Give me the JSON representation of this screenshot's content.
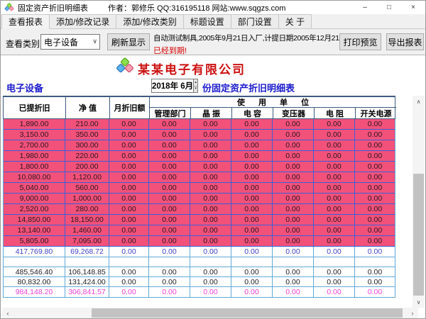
{
  "window": {
    "title": "固定资产折旧明细表",
    "author_info": "作者：郭修乐   QQ:316195118   网站:www.sqgzs.com"
  },
  "icons": {
    "minimize": "–",
    "maximize": "□",
    "close": "×",
    "dropdown_arrow": "∨",
    "spin_up": "▴",
    "spin_down": "▾",
    "scroll_up": "∧",
    "scroll_down": "∨",
    "scroll_left": "‹",
    "scroll_right": "›"
  },
  "menu_tabs": [
    {
      "label": "查看报表",
      "active": true
    },
    {
      "label": "添加/修改记录",
      "active": false
    },
    {
      "label": "添加/修改类别",
      "active": false
    },
    {
      "label": "标题设置",
      "active": false
    },
    {
      "label": "部门设置",
      "active": false
    },
    {
      "label": "关 于",
      "active": false
    }
  ],
  "toolbar": {
    "category_label": "查看类别",
    "category_value": "电子设备",
    "refresh_button": "刷新显示",
    "asset_info": "自动测试制具,2005年9月21日入厂,计提日期2005年12月21日",
    "expired_notice": "已经到期!",
    "print_preview_button": "打印预览",
    "export_button": "导出报表"
  },
  "report": {
    "company_name": "某某电子有限公司",
    "category_title": "电子设备",
    "period_value": "2018年  6月",
    "subtitle": "份固定资产折旧明细表"
  },
  "table": {
    "row_headers": [
      "已提折旧",
      "净 值",
      "月折旧额"
    ],
    "group_header": "使 用 单 位",
    "unit_headers": [
      "管理部门",
      "晶 振",
      "电 容",
      "变压器",
      "电 阻",
      "开关电源"
    ],
    "rows": [
      {
        "style": "pink",
        "values": [
          "1,890.00",
          "210.00",
          "0.00",
          "0.00",
          "0.00",
          "0.00",
          "0.00",
          "0.00",
          "0.00"
        ]
      },
      {
        "style": "pink",
        "values": [
          "3,150.00",
          "350.00",
          "0.00",
          "0.00",
          "0.00",
          "0.00",
          "0.00",
          "0.00",
          "0.00"
        ]
      },
      {
        "style": "pink",
        "values": [
          "2,700.00",
          "300.00",
          "0.00",
          "0.00",
          "0.00",
          "0.00",
          "0.00",
          "0.00",
          "0.00"
        ]
      },
      {
        "style": "pink",
        "values": [
          "1,980.00",
          "220.00",
          "0.00",
          "0.00",
          "0.00",
          "0.00",
          "0.00",
          "0.00",
          "0.00"
        ]
      },
      {
        "style": "pink",
        "values": [
          "1,800.00",
          "200.00",
          "0.00",
          "0.00",
          "0.00",
          "0.00",
          "0.00",
          "0.00",
          "0.00"
        ]
      },
      {
        "style": "pink",
        "values": [
          "10,080.00",
          "1,120.00",
          "0.00",
          "0.00",
          "0.00",
          "0.00",
          "0.00",
          "0.00",
          "0.00"
        ]
      },
      {
        "style": "pink",
        "values": [
          "5,040.00",
          "560.00",
          "0.00",
          "0.00",
          "0.00",
          "0.00",
          "0.00",
          "0.00",
          "0.00"
        ]
      },
      {
        "style": "pink",
        "values": [
          "9,000.00",
          "1,000.00",
          "0.00",
          "0.00",
          "0.00",
          "0.00",
          "0.00",
          "0.00",
          "0.00"
        ]
      },
      {
        "style": "pink",
        "values": [
          "2,520.00",
          "280.00",
          "0.00",
          "0.00",
          "0.00",
          "0.00",
          "0.00",
          "0.00",
          "0.00"
        ]
      },
      {
        "style": "pink",
        "values": [
          "14,850.00",
          "18,150.00",
          "0.00",
          "0.00",
          "0.00",
          "0.00",
          "0.00",
          "0.00",
          "0.00"
        ]
      },
      {
        "style": "pink",
        "values": [
          "13,140.00",
          "1,460.00",
          "0.00",
          "0.00",
          "0.00",
          "0.00",
          "0.00",
          "0.00",
          "0.00"
        ]
      },
      {
        "style": "pink",
        "values": [
          "5,805.00",
          "7,095.00",
          "0.00",
          "0.00",
          "0.00",
          "0.00",
          "0.00",
          "0.00",
          "0.00"
        ]
      },
      {
        "style": "subtotal",
        "values": [
          "417,769.80",
          "69,268.72",
          "0.00",
          "0.00",
          "0.00",
          "0.00",
          "0.00",
          "0.00",
          "0.00"
        ]
      },
      {
        "style": "spacer",
        "values": [
          "",
          "",
          "",
          "",
          "",
          "",
          "",
          "",
          ""
        ]
      },
      {
        "style": "plain",
        "values": [
          "485,546.40",
          "106,148.85",
          "0.00",
          "0.00",
          "0.00",
          "0.00",
          "0.00",
          "0.00",
          "0.00"
        ]
      },
      {
        "style": "plain",
        "values": [
          "80,832.00",
          "131,424.00",
          "0.00",
          "0.00",
          "0.00",
          "0.00",
          "0.00",
          "0.00",
          "0.00"
        ]
      },
      {
        "style": "total",
        "values": [
          "984,148.20",
          "306,841.57",
          "0.00",
          "0.00",
          "0.00",
          "0.00",
          "0.00",
          "0.00",
          "0.00"
        ]
      }
    ]
  },
  "colors": {
    "row_pink": "#f2517a",
    "grid_blue": "#3c5fd8",
    "grid_light": "#63a9d6",
    "header_border": "#3d5a80",
    "company_red": "#cc1111",
    "heading_blue": "#1a1acc",
    "subtotal_blue": "#4343c6",
    "total_magenta": "#ee3fd8",
    "expired_red": "#d40000"
  }
}
